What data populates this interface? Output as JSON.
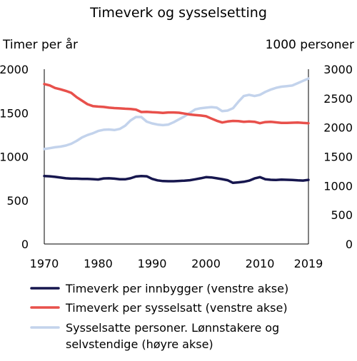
{
  "chart_data": {
    "type": "line",
    "title": "Timeverk og sysselsetting",
    "ylabel_left": "Timer per år",
    "ylabel_right": "1000 personer",
    "xlim": [
      1970,
      2019
    ],
    "ylim_left": [
      0,
      2000
    ],
    "ylim_right": [
      0,
      3000
    ],
    "x_ticks": [
      "1970",
      "1980",
      "1990",
      "2000",
      "2010",
      "2019"
    ],
    "y_ticks_left": [
      "0",
      "500",
      "1000",
      "1500",
      "2000"
    ],
    "y_ticks_right": [
      "0",
      "500",
      "1000",
      "1500",
      "2000",
      "2500",
      "3000"
    ],
    "grid": false,
    "legend_position": "bottom",
    "x": [
      1970,
      1971,
      1972,
      1973,
      1974,
      1975,
      1976,
      1977,
      1978,
      1979,
      1980,
      1981,
      1982,
      1983,
      1984,
      1985,
      1986,
      1987,
      1988,
      1989,
      1990,
      1991,
      1992,
      1993,
      1994,
      1995,
      1996,
      1997,
      1998,
      1999,
      2000,
      2001,
      2002,
      2003,
      2004,
      2005,
      2006,
      2007,
      2008,
      2009,
      2010,
      2011,
      2012,
      2013,
      2014,
      2015,
      2016,
      2017,
      2018,
      2019
    ],
    "series": [
      {
        "name": "Timeverk per innbygger (venstre akse)",
        "axis": "left",
        "color": "#16164e",
        "values": [
          778,
          775,
          768,
          760,
          752,
          748,
          748,
          745,
          745,
          742,
          738,
          750,
          752,
          748,
          740,
          740,
          752,
          772,
          778,
          775,
          745,
          728,
          720,
          718,
          718,
          722,
          725,
          730,
          740,
          752,
          765,
          762,
          752,
          742,
          730,
          700,
          705,
          712,
          725,
          750,
          765,
          740,
          735,
          732,
          736,
          735,
          733,
          728,
          726,
          734
        ]
      },
      {
        "name": "Timeverk per sysselsatt (venstre akse)",
        "axis": "left",
        "color": "#e8504b",
        "values": [
          1830,
          1815,
          1785,
          1770,
          1752,
          1730,
          1680,
          1640,
          1600,
          1578,
          1572,
          1568,
          1560,
          1555,
          1552,
          1548,
          1545,
          1538,
          1510,
          1512,
          1508,
          1505,
          1500,
          1505,
          1505,
          1502,
          1492,
          1482,
          1476,
          1470,
          1462,
          1435,
          1410,
          1390,
          1402,
          1408,
          1406,
          1398,
          1402,
          1398,
          1382,
          1395,
          1398,
          1392,
          1385,
          1386,
          1388,
          1390,
          1385,
          1382
        ]
      },
      {
        "name": "Sysselsatte personer. Lønnstakere og selvstendige (høyre akse)",
        "axis": "right",
        "color": "#c3d3ec",
        "values": [
          1630,
          1645,
          1660,
          1672,
          1690,
          1720,
          1770,
          1830,
          1870,
          1900,
          1940,
          1960,
          1965,
          1955,
          1975,
          2030,
          2120,
          2180,
          2180,
          2100,
          2070,
          2050,
          2040,
          2050,
          2090,
          2140,
          2190,
          2250,
          2310,
          2330,
          2340,
          2350,
          2340,
          2280,
          2290,
          2330,
          2440,
          2540,
          2560,
          2540,
          2560,
          2610,
          2650,
          2680,
          2700,
          2710,
          2720,
          2760,
          2800,
          2840
        ]
      }
    ]
  }
}
